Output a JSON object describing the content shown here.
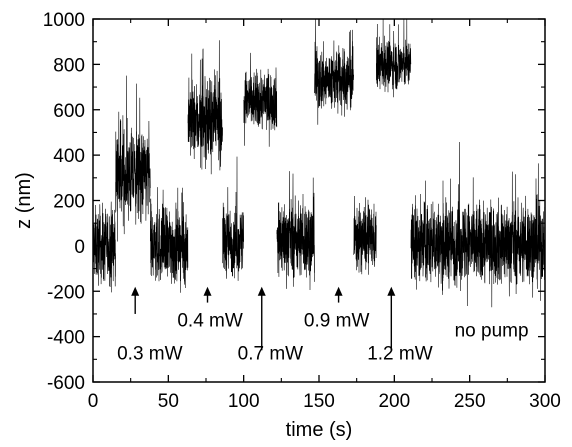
{
  "chart_data": {
    "type": "line",
    "title": "",
    "xlabel": "time (s)",
    "ylabel": "z (nm)",
    "xlim": [
      0,
      300
    ],
    "ylim": [
      -600,
      1000
    ],
    "xticks": [
      0,
      50,
      100,
      150,
      200,
      250,
      300
    ],
    "yticks": [
      -600,
      -400,
      -200,
      0,
      200,
      400,
      600,
      800,
      1000
    ],
    "grid": false,
    "legend": "none",
    "line_color": "#000000",
    "segments": [
      {
        "t_start": 0,
        "t_end": 15,
        "mean_z": 0,
        "spread_z": 160
      },
      {
        "t_start": 15,
        "t_end": 38,
        "mean_z": 310,
        "spread_z": 200
      },
      {
        "t_start": 38,
        "t_end": 63,
        "mean_z": 0,
        "spread_z": 170
      },
      {
        "t_start": 63,
        "t_end": 86,
        "mean_z": 550,
        "spread_z": 170
      },
      {
        "t_start": 86,
        "t_end": 100,
        "mean_z": 20,
        "spread_z": 150
      },
      {
        "t_start": 100,
        "t_end": 122,
        "mean_z": 640,
        "spread_z": 130
      },
      {
        "t_start": 122,
        "t_end": 147,
        "mean_z": 30,
        "spread_z": 170
      },
      {
        "t_start": 147,
        "t_end": 173,
        "mean_z": 730,
        "spread_z": 140
      },
      {
        "t_start": 173,
        "t_end": 188,
        "mean_z": 30,
        "spread_z": 140
      },
      {
        "t_start": 188,
        "t_end": 211,
        "mean_z": 800,
        "spread_z": 110
      },
      {
        "t_start": 211,
        "t_end": 300,
        "mean_z": 10,
        "spread_z": 180
      }
    ],
    "annotations": [
      {
        "text": "0.3 mW",
        "arrow_x": 28,
        "arrow_tip_z": -180,
        "arrow_tail_z": -300,
        "label_x": 16,
        "label_z": -500
      },
      {
        "text": "0.4 mW",
        "arrow_x": 76,
        "arrow_tip_z": -180,
        "arrow_tail_z": -250,
        "label_x": 56,
        "label_z": -355
      },
      {
        "text": "0.7 mW",
        "arrow_x": 112,
        "arrow_tip_z": -180,
        "arrow_tail_z": -460,
        "label_x": 96,
        "label_z": -500
      },
      {
        "text": "0.9 mW",
        "arrow_x": 163,
        "arrow_tip_z": -180,
        "arrow_tail_z": -250,
        "label_x": 140,
        "label_z": -355
      },
      {
        "text": "1.2 mW",
        "arrow_x": 198,
        "arrow_tip_z": -180,
        "arrow_tail_z": -460,
        "label_x": 182,
        "label_z": -500
      },
      {
        "text": "no pump",
        "arrow_x": null,
        "arrow_tip_z": null,
        "arrow_tail_z": null,
        "label_x": 240,
        "label_z": -400
      }
    ]
  }
}
